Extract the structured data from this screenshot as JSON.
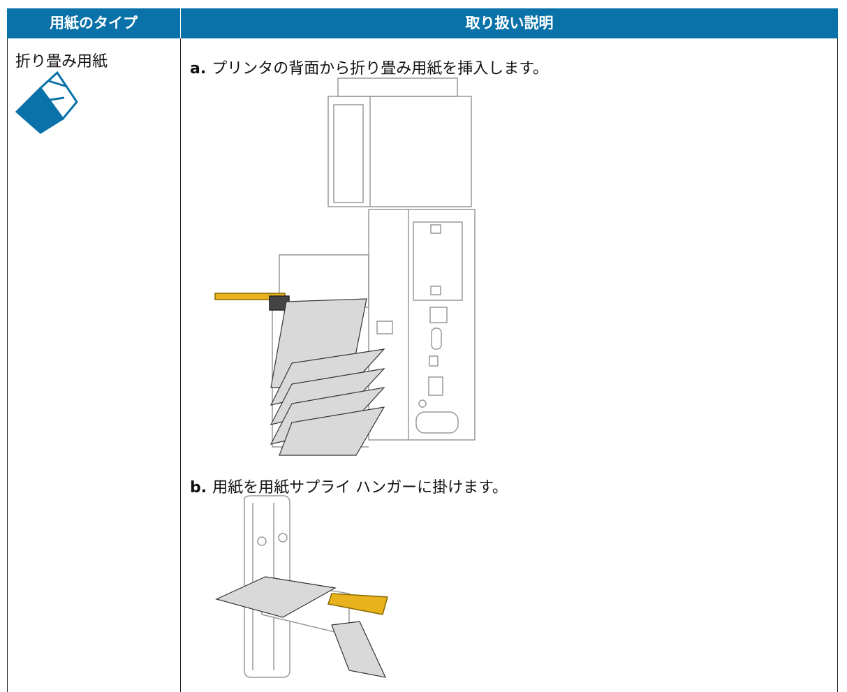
{
  "table": {
    "header": [
      "用紙のタイプ",
      "取り扱い説明"
    ],
    "rows": [
      {
        "type": "折り畳み用紙",
        "steps": [
          {
            "label": "a.",
            "text": "プリンタの背面から折り畳み用紙を挿入します。"
          },
          {
            "label": "b.",
            "text": "用紙を用紙サプライ ハンガーに掛けます。"
          }
        ]
      }
    ]
  }
}
